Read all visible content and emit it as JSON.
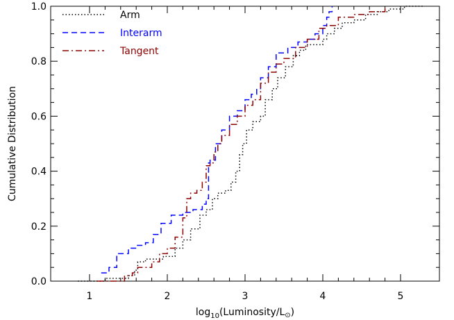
{
  "chart_data": {
    "type": "line",
    "xlabel": "log10(Luminosity/L⊙)",
    "xlabel_parts": {
      "main": "log",
      "sub": "10",
      "rest": "(Luminosity/L",
      "sym": "⊙",
      "close": ")"
    },
    "ylabel": "Cumulative Distribution",
    "xlim": [
      0.5,
      5.5
    ],
    "ylim": [
      0.0,
      1.0
    ],
    "x_ticks": [
      1,
      2,
      3,
      4,
      5
    ],
    "x_tick_labels": [
      "1",
      "2",
      "3",
      "4",
      "5"
    ],
    "y_ticks": [
      0.0,
      0.2,
      0.4,
      0.6,
      0.8,
      1.0
    ],
    "y_tick_labels": [
      "0.0",
      "0.2",
      "0.4",
      "0.6",
      "0.8",
      "1.0"
    ],
    "grid": false,
    "legend_position": "top-left",
    "series": [
      {
        "name": "Arm",
        "color": "#000000",
        "style": "dotted",
        "x": [
          0.85,
          1.2,
          1.5,
          1.58,
          1.62,
          1.65,
          1.72,
          1.82,
          1.95,
          2.1,
          2.2,
          2.3,
          2.42,
          2.5,
          2.58,
          2.65,
          2.75,
          2.82,
          2.88,
          2.93,
          2.97,
          3.02,
          3.1,
          3.2,
          3.26,
          3.3,
          3.35,
          3.42,
          3.52,
          3.62,
          3.7,
          3.78,
          3.9,
          4.0,
          4.05,
          4.15,
          4.25,
          4.4,
          4.55,
          4.7,
          4.85,
          5.05,
          5.3
        ],
        "y": [
          0.0,
          0.01,
          0.02,
          0.04,
          0.07,
          0.07,
          0.08,
          0.08,
          0.09,
          0.12,
          0.15,
          0.19,
          0.24,
          0.26,
          0.3,
          0.32,
          0.33,
          0.36,
          0.4,
          0.46,
          0.5,
          0.55,
          0.58,
          0.6,
          0.66,
          0.66,
          0.7,
          0.74,
          0.78,
          0.82,
          0.84,
          0.86,
          0.86,
          0.88,
          0.9,
          0.92,
          0.94,
          0.95,
          0.97,
          0.98,
          0.99,
          1.0,
          1.0
        ]
      },
      {
        "name": "Interarm",
        "color": "#0000ff",
        "style": "dashed",
        "x": [
          1.15,
          1.25,
          1.35,
          1.5,
          1.6,
          1.72,
          1.82,
          1.92,
          2.05,
          2.2,
          2.33,
          2.45,
          2.5,
          2.53,
          2.55,
          2.62,
          2.7,
          2.8,
          2.9,
          3.0,
          3.08,
          3.15,
          3.2,
          3.3,
          3.4,
          3.55,
          3.68,
          3.8,
          3.9,
          4.0,
          4.05,
          4.08,
          4.12
        ],
        "y": [
          0.03,
          0.05,
          0.1,
          0.12,
          0.13,
          0.14,
          0.17,
          0.21,
          0.24,
          0.25,
          0.26,
          0.28,
          0.3,
          0.43,
          0.44,
          0.5,
          0.55,
          0.6,
          0.62,
          0.66,
          0.68,
          0.7,
          0.74,
          0.78,
          0.83,
          0.85,
          0.87,
          0.88,
          0.9,
          0.93,
          0.96,
          0.98,
          1.0
        ]
      },
      {
        "name": "Tangent",
        "color": "#8b0000",
        "style": "dashdot",
        "x": [
          1.1,
          1.3,
          1.45,
          1.55,
          1.62,
          1.8,
          1.9,
          2.0,
          2.1,
          2.2,
          2.25,
          2.3,
          2.38,
          2.45,
          2.5,
          2.55,
          2.6,
          2.65,
          2.7,
          2.8,
          2.9,
          3.0,
          3.1,
          3.2,
          3.3,
          3.4,
          3.5,
          3.65,
          3.8,
          3.95,
          4.05,
          4.2,
          4.4,
          4.6,
          4.8
        ],
        "y": [
          0.0,
          0.0,
          0.02,
          0.03,
          0.05,
          0.07,
          0.1,
          0.12,
          0.16,
          0.23,
          0.3,
          0.32,
          0.33,
          0.36,
          0.42,
          0.43,
          0.47,
          0.5,
          0.53,
          0.57,
          0.6,
          0.64,
          0.66,
          0.72,
          0.76,
          0.79,
          0.81,
          0.85,
          0.88,
          0.92,
          0.93,
          0.96,
          0.97,
          0.98,
          1.0
        ]
      }
    ]
  }
}
